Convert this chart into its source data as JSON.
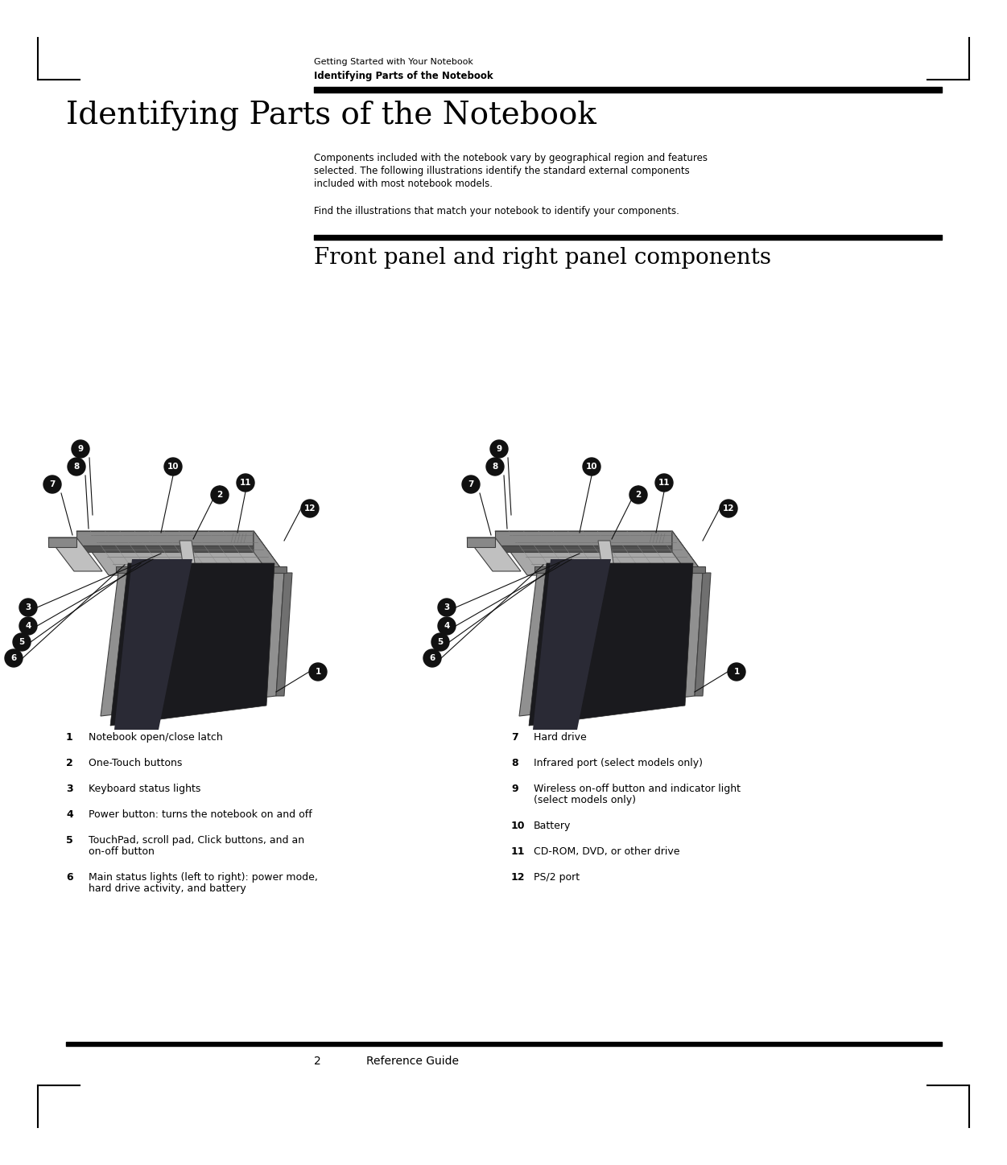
{
  "bg_color": "#ffffff",
  "header_line1": "Getting Started with Your Notebook",
  "header_line2": "Identifying Parts of the Notebook",
  "main_title": "Identifying Parts of the Notebook",
  "body_para1_line1": "Components included with the notebook vary by geographical region and features",
  "body_para1_line2": "selected. The following illustrations identify the standard external components",
  "body_para1_line3": "included with most notebook models.",
  "body_para2": "Find the illustrations that match your notebook to identify your components.",
  "section_title": "Front panel and right panel components",
  "footer_num": "2",
  "footer_label": "Reference Guide",
  "left_items": [
    {
      "num": "1",
      "text": "Notebook open/close latch",
      "wrap": false
    },
    {
      "num": "2",
      "text": "One-Touch buttons",
      "wrap": false
    },
    {
      "num": "3",
      "text": "Keyboard status lights",
      "wrap": false
    },
    {
      "num": "4",
      "text": "Power button: turns the notebook on and off",
      "wrap": false
    },
    {
      "num": "5",
      "text_line1": "TouchPad, scroll pad, Click buttons, and an",
      "text_line2": "on-off button",
      "wrap": true
    },
    {
      "num": "6",
      "text_line1": "Main status lights (left to right): power mode,",
      "text_line2": "hard drive activity, and battery",
      "wrap": true
    }
  ],
  "right_items": [
    {
      "num": "7",
      "text": "Hard drive",
      "wrap": false
    },
    {
      "num": "8",
      "text": "Infrared port (select models only)",
      "wrap": false
    },
    {
      "num": "9",
      "text_line1": "Wireless on-off button and indicator light",
      "text_line2": "(select models only)",
      "wrap": true
    },
    {
      "num": "10",
      "text": "Battery",
      "wrap": false
    },
    {
      "num": "11",
      "text": "CD-ROM, DVD, or other drive",
      "wrap": false
    },
    {
      "num": "12",
      "text": "PS/2 port",
      "wrap": false
    }
  ]
}
